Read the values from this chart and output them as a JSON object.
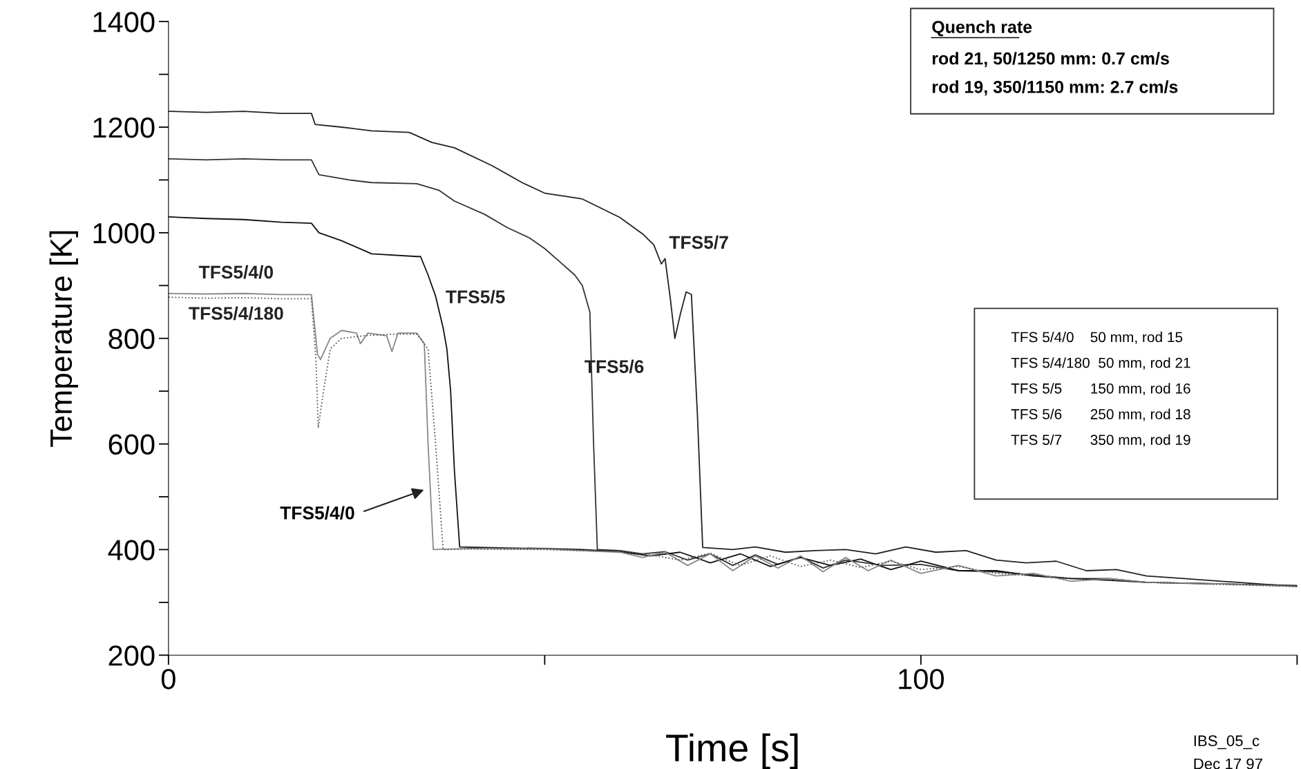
{
  "chart_data": {
    "type": "line",
    "xlabel": "Time [s]",
    "ylabel": "Temperature [K]",
    "xlim": [
      0,
      150
    ],
    "xticks": [
      0,
      {
        "value": 50,
        "label": null
      },
      100,
      {
        "value": 150,
        "label": null
      }
    ],
    "ylim": [
      200,
      1400
    ],
    "yticks": [
      200,
      {
        "value": 300,
        "label": null
      },
      400,
      {
        "value": 500,
        "label": null
      },
      600,
      {
        "value": 700,
        "label": null
      },
      800,
      {
        "value": 900,
        "label": null
      },
      1000,
      {
        "value": 1100,
        "label": null
      },
      1200,
      {
        "value": 1300,
        "label": null
      },
      1400
    ],
    "grid": false,
    "legend": false,
    "marker": "none",
    "series": [
      {
        "name": "TFS5/7",
        "color": "#222222",
        "line_style": "solid",
        "x": [
          0,
          5,
          10,
          15,
          19,
          19.5,
          23,
          27,
          32,
          35,
          38,
          43,
          47,
          50,
          55,
          60,
          63,
          64.5,
          65.5,
          66,
          66.7,
          67.3,
          68,
          68.8,
          69.5,
          70.3,
          71,
          75,
          78,
          82,
          86,
          90,
          94,
          98,
          102,
          106,
          110,
          114,
          118,
          122,
          126,
          130,
          135,
          140,
          145,
          150
        ],
        "values": [
          1230,
          1228,
          1230,
          1226,
          1226,
          1205,
          1200,
          1193,
          1190,
          1171,
          1161,
          1127,
          1095,
          1075,
          1064,
          1029,
          998,
          977,
          941,
          951,
          875,
          800,
          844,
          888,
          883,
          655,
          404,
          400,
          405,
          395,
          398,
          400,
          392,
          405,
          395,
          398,
          380,
          375,
          378,
          360,
          362,
          350,
          345,
          340,
          335,
          330
        ]
      },
      {
        "name": "TFS5/6",
        "color": "#333333",
        "line_style": "solid",
        "x": [
          0,
          5,
          10,
          15,
          19,
          20,
          24,
          27,
          33,
          36,
          38,
          42,
          45,
          48,
          50,
          52,
          54,
          55,
          56,
          56.5,
          57,
          60,
          63,
          66,
          69,
          72,
          75,
          78,
          81,
          84,
          87,
          90,
          95,
          100,
          105,
          110,
          115,
          120,
          125,
          130,
          140,
          150
        ],
        "values": [
          1140,
          1138,
          1140,
          1138,
          1138,
          1110,
          1100,
          1095,
          1093,
          1080,
          1060,
          1035,
          1010,
          990,
          970,
          945,
          920,
          900,
          850,
          600,
          400,
          398,
          392,
          396,
          380,
          392,
          370,
          390,
          372,
          386,
          365,
          380,
          370,
          372,
          360,
          358,
          352,
          345,
          345,
          338,
          335,
          332
        ]
      },
      {
        "name": "TFS5/5",
        "color": "#111111",
        "line_style": "solid",
        "x": [
          0,
          5,
          10,
          15,
          19,
          20,
          23,
          27,
          33,
          33.5,
          34.5,
          35.5,
          36.5,
          37,
          37.5,
          38,
          38.7,
          45,
          50,
          55,
          60,
          64,
          68,
          72,
          76,
          80,
          84,
          88,
          92,
          96,
          100,
          105,
          110,
          115,
          120,
          125,
          130,
          140,
          150
        ],
        "values": [
          1030,
          1027,
          1025,
          1020,
          1018,
          1000,
          985,
          960,
          955,
          955,
          920,
          880,
          820,
          780,
          700,
          550,
          405,
          403,
          402,
          400,
          396,
          388,
          395,
          375,
          392,
          368,
          385,
          370,
          382,
          362,
          378,
          360,
          360,
          350,
          345,
          342,
          338,
          335,
          331
        ]
      },
      {
        "name": "TFS5/4/0",
        "color": "#888888",
        "line_style": "solid",
        "x": [
          0,
          5,
          10,
          15,
          19,
          19.8,
          20.2,
          21.5,
          23,
          25,
          25.5,
          26.5,
          29,
          29.7,
          30.5,
          33,
          34,
          34.5,
          35.2,
          40,
          50,
          60,
          63,
          66,
          69,
          72,
          75,
          78,
          81,
          84,
          87,
          90,
          93,
          96,
          100,
          105,
          110,
          115,
          120,
          125,
          130,
          140,
          150
        ],
        "values": [
          885,
          884,
          885,
          883,
          883,
          770,
          760,
          800,
          815,
          810,
          790,
          810,
          805,
          775,
          810,
          810,
          790,
          600,
          400,
          402,
          401,
          395,
          385,
          395,
          370,
          392,
          360,
          388,
          365,
          388,
          358,
          385,
          360,
          380,
          355,
          370,
          350,
          355,
          340,
          345,
          338,
          335,
          330
        ]
      },
      {
        "name": "TFS5/4/180",
        "color": "#555555",
        "line_style": "dotted",
        "x": [
          0,
          5,
          10,
          15,
          19,
          19.6,
          19.9,
          20.6,
          21.5,
          23,
          26,
          30,
          33,
          34.5,
          35.5,
          36.5,
          40,
          50,
          60,
          64,
          68,
          72,
          76,
          80,
          84,
          88,
          92,
          96,
          100,
          105,
          110,
          115,
          120,
          125,
          130,
          140,
          150
        ],
        "values": [
          878,
          876,
          877,
          875,
          875,
          760,
          630,
          700,
          780,
          800,
          805,
          808,
          808,
          780,
          600,
          400,
          401,
          400,
          396,
          390,
          380,
          393,
          370,
          388,
          368,
          380,
          366,
          378,
          362,
          368,
          355,
          350,
          345,
          342,
          338,
          334,
          330
        ]
      }
    ],
    "annotations": [
      "TFS5/4/0",
      "Quench rate",
      "rod 21, 50/1250 mm: 0.7 cm/s",
      "rod 19, 350/1150 mm: 2.7 cm/s",
      "TFS 5/4/0    50 mm, rod 15",
      "TFS 5/4/180  50 mm, rod 21",
      "TFS 5/5       150 mm, rod 16",
      "TFS 5/6       250 mm, rod 18",
      "TFS 5/7       350 mm, rod 19",
      "IBS_05_c",
      "Dec 17 97"
    ]
  }
}
